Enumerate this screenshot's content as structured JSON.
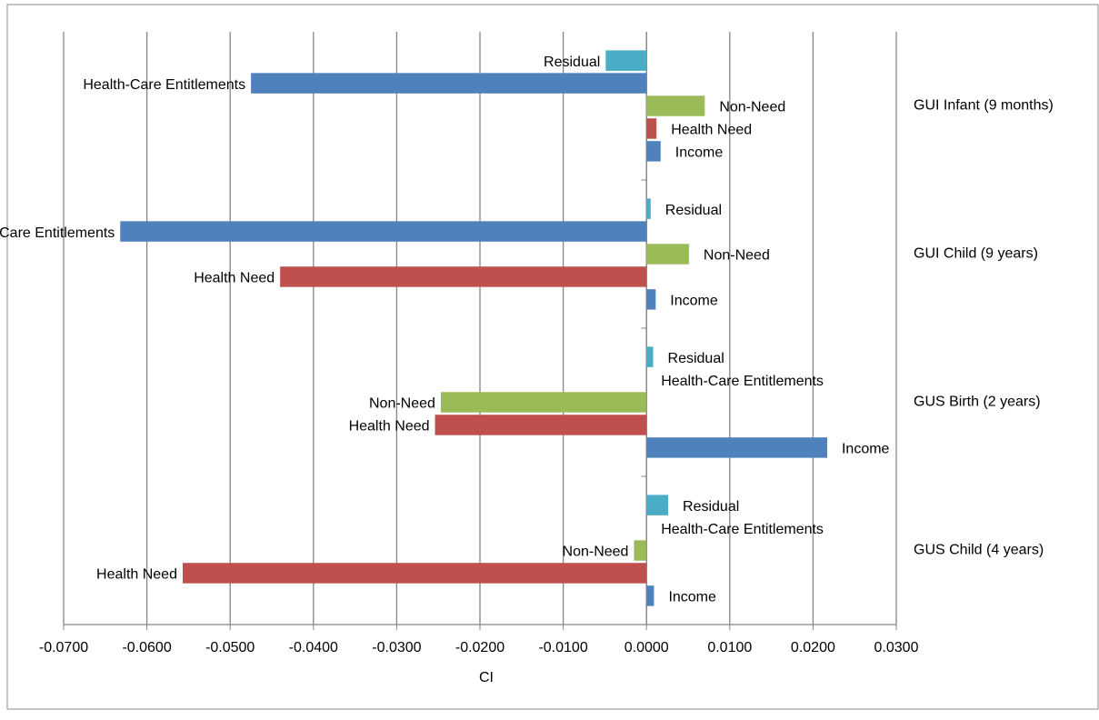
{
  "chart_data": {
    "type": "hbar",
    "categories": [
      "GUI Infant (9 months)",
      "GUI Child (9 years)",
      "GUS Birth (2 years)",
      "GUS Child (4 years)"
    ],
    "series": [
      {
        "name": "Residual",
        "color": "#4bacc6",
        "values": [
          -0.0049,
          0.0005,
          0.0008,
          0.0026
        ]
      },
      {
        "name": "Health-Care Entitlements",
        "color": "#4f81bd",
        "values": [
          -0.0475,
          -0.0632,
          0,
          0
        ]
      },
      {
        "name": "Non-Need",
        "color": "#9bbb59",
        "values": [
          0.007,
          0.0051,
          -0.0247,
          -0.0015
        ]
      },
      {
        "name": "Health Need",
        "color": "#c0504d",
        "values": [
          0.0012,
          -0.044,
          -0.0254,
          -0.0557
        ]
      },
      {
        "name": "Income",
        "color": "#4f81bd",
        "values": [
          0.0017,
          0.0011,
          0.0217,
          0.0009
        ]
      }
    ],
    "xlabel": "CI",
    "xlim": [
      -0.07,
      0.03
    ],
    "xticks": [
      {
        "value": -0.07,
        "label": "-0.0700"
      },
      {
        "value": -0.06,
        "label": "-0.0600"
      },
      {
        "value": -0.05,
        "label": "-0.0500"
      },
      {
        "value": -0.04,
        "label": "-0.0400"
      },
      {
        "value": -0.03,
        "label": "-0.0300"
      },
      {
        "value": -0.02,
        "label": "-0.0200"
      },
      {
        "value": -0.01,
        "label": "-0.0100"
      },
      {
        "value": 0,
        "label": "0.0000"
      },
      {
        "value": 0.01,
        "label": "0.0100"
      },
      {
        "value": 0.02,
        "label": "0.0200"
      },
      {
        "value": 0.03,
        "label": "0.0300"
      }
    ],
    "grid": true
  }
}
